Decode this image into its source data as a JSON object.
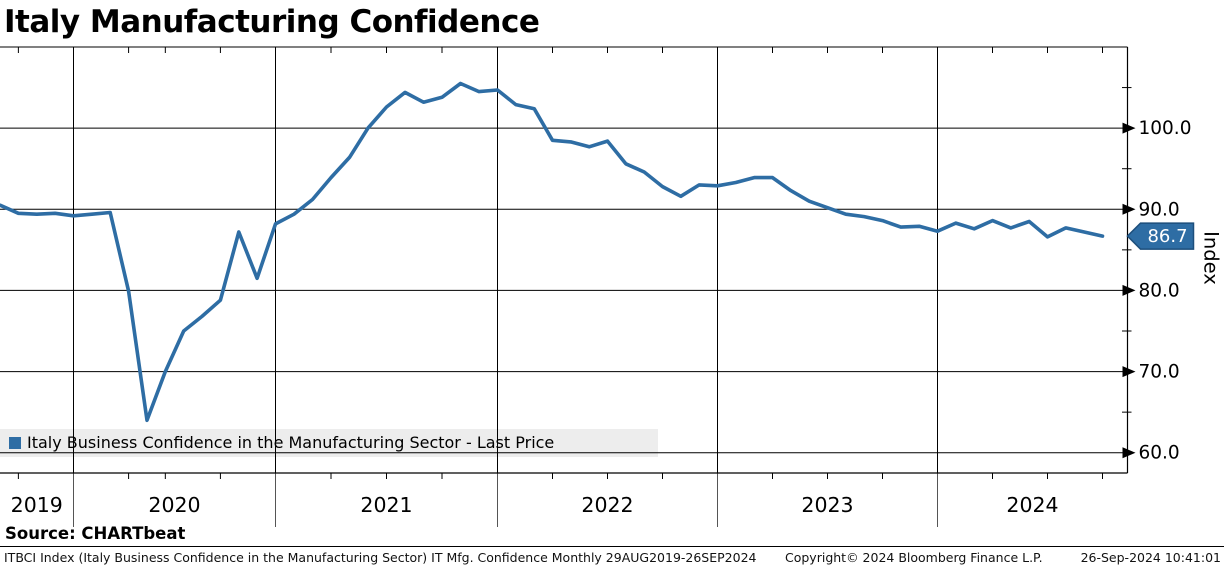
{
  "title": "Italy Manufacturing Confidence",
  "source_label": "Source: CHARTbeat",
  "footer": {
    "description": "ITBCI Index (Italy Business Confidence in the Manufacturing Sector) IT Mfg. Confidence  Monthly 29AUG2019-26SEP2024",
    "copyright": "Copyright© 2024 Bloomberg Finance L.P.",
    "timestamp": "26-Sep-2024 10:41:01"
  },
  "colors": {
    "line": "#2e6da4",
    "tag_fill": "#2e6da4",
    "tag_border": "#1d4f7c",
    "tag_text": "#ffffff",
    "grid": "#000000",
    "legend_bg": "#ededed"
  },
  "chart_data": {
    "type": "line",
    "title": "Italy Manufacturing Confidence",
    "ylabel": "Index",
    "ylim": [
      57.5,
      110
    ],
    "grid": "on",
    "legend_position": "bottom-left",
    "legend": [
      {
        "label": "Italy Business Confidence in the Manufacturing Sector - Last Price",
        "color": "#2e6da4"
      }
    ],
    "yticks": {
      "major": [
        60,
        70,
        80,
        90,
        100
      ],
      "major_labels": [
        "60.0",
        "70.0",
        "80.0",
        "90.0",
        "100.0"
      ],
      "minor": [
        65,
        75,
        85,
        95,
        105
      ]
    },
    "x_year_labels": [
      "2019",
      "2020",
      "2021",
      "2022",
      "2023",
      "2024"
    ],
    "frequency": "Monthly",
    "range_shown": "29AUG2019-26SEP2024",
    "last_price": {
      "label": "86.7",
      "value": 86.7
    },
    "series": [
      {
        "name": "Italy Business Confidence in the Manufacturing Sector - Last Price",
        "color": "#2e6da4",
        "points": [
          [
            "2019-08",
            90.5
          ],
          [
            "2019-09",
            89.5
          ],
          [
            "2019-10",
            89.4
          ],
          [
            "2019-11",
            89.5
          ],
          [
            "2019-12",
            89.2
          ],
          [
            "2020-01",
            89.4
          ],
          [
            "2020-02",
            89.6
          ],
          [
            "2020-03",
            79.9
          ],
          [
            "2020-05",
            64.0
          ],
          [
            "2020-06",
            70.0
          ],
          [
            "2020-07",
            75.0
          ],
          [
            "2020-08",
            76.8
          ],
          [
            "2020-09",
            78.8
          ],
          [
            "2020-10",
            87.2
          ],
          [
            "2020-11",
            81.5
          ],
          [
            "2020-12",
            88.2
          ],
          [
            "2021-01",
            89.4
          ],
          [
            "2021-02",
            91.2
          ],
          [
            "2021-03",
            93.9
          ],
          [
            "2021-04",
            96.4
          ],
          [
            "2021-05",
            100.0
          ],
          [
            "2021-06",
            102.6
          ],
          [
            "2021-07",
            104.4
          ],
          [
            "2021-08",
            103.2
          ],
          [
            "2021-09",
            103.8
          ],
          [
            "2021-10",
            105.5
          ],
          [
            "2021-11",
            104.5
          ],
          [
            "2021-12",
            104.7
          ],
          [
            "2022-01",
            102.9
          ],
          [
            "2022-02",
            102.4
          ],
          [
            "2022-03",
            98.5
          ],
          [
            "2022-04",
            98.3
          ],
          [
            "2022-05",
            97.7
          ],
          [
            "2022-06",
            98.4
          ],
          [
            "2022-07",
            95.6
          ],
          [
            "2022-08",
            94.6
          ],
          [
            "2022-09",
            92.8
          ],
          [
            "2022-10",
            91.6
          ],
          [
            "2022-11",
            93.0
          ],
          [
            "2022-12",
            92.9
          ],
          [
            "2023-01",
            93.3
          ],
          [
            "2023-02",
            93.9
          ],
          [
            "2023-03",
            93.9
          ],
          [
            "2023-04",
            92.3
          ],
          [
            "2023-05",
            91.0
          ],
          [
            "2023-06",
            90.2
          ],
          [
            "2023-07",
            89.4
          ],
          [
            "2023-08",
            89.1
          ],
          [
            "2023-09",
            88.6
          ],
          [
            "2023-10",
            87.8
          ],
          [
            "2023-11",
            87.9
          ],
          [
            "2023-12",
            87.3
          ],
          [
            "2024-01",
            88.3
          ],
          [
            "2024-02",
            87.6
          ],
          [
            "2024-03",
            88.6
          ],
          [
            "2024-04",
            87.7
          ],
          [
            "2024-05",
            88.5
          ],
          [
            "2024-06",
            86.6
          ],
          [
            "2024-07",
            87.7
          ],
          [
            "2024-08",
            87.2
          ],
          [
            "2024-09",
            86.7
          ]
        ]
      }
    ]
  }
}
